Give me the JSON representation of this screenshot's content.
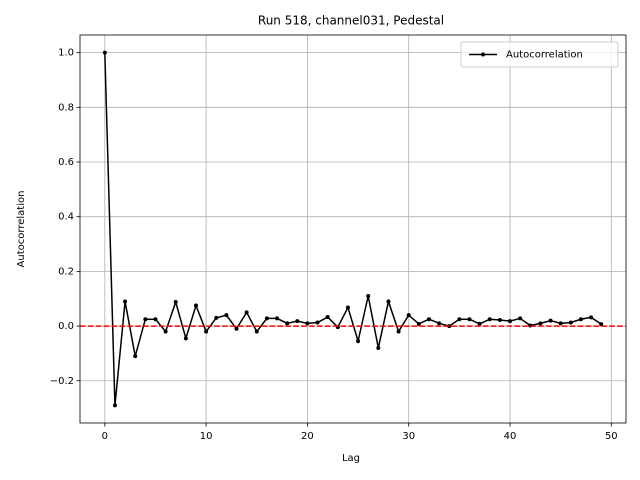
{
  "chart_data": {
    "type": "line",
    "title": "Run 518, channel031, Pedestal",
    "x_label": "Lag",
    "y_label": "Autocorrelation",
    "x": [
      0,
      1,
      2,
      3,
      4,
      5,
      6,
      7,
      8,
      9,
      10,
      11,
      12,
      13,
      14,
      15,
      16,
      17,
      18,
      19,
      20,
      21,
      22,
      23,
      24,
      25,
      26,
      27,
      28,
      29,
      30,
      31,
      32,
      33,
      34,
      35,
      36,
      37,
      38,
      39,
      40,
      41,
      42,
      43,
      44,
      45,
      46,
      47,
      48,
      49
    ],
    "series": [
      {
        "name": "Autocorrelation",
        "color": "#000000",
        "values": [
          1.0,
          -0.29,
          0.09,
          -0.11,
          0.025,
          0.025,
          -0.02,
          0.088,
          -0.045,
          0.075,
          -0.02,
          0.03,
          0.04,
          -0.01,
          0.05,
          -0.02,
          0.028,
          0.028,
          0.01,
          0.018,
          0.01,
          0.013,
          0.033,
          -0.004,
          0.068,
          -0.055,
          0.11,
          -0.08,
          0.09,
          -0.02,
          0.04,
          0.008,
          0.025,
          0.01,
          0.0,
          0.025,
          0.025,
          0.008,
          0.025,
          0.022,
          0.018,
          0.028,
          0.002,
          0.01,
          0.02,
          0.01,
          0.013,
          0.025,
          0.032,
          0.007
        ]
      }
    ],
    "hline": {
      "value": 0,
      "color": "#ff0000"
    },
    "xlim": [
      -2.45,
      51.45
    ],
    "xticks": [
      0,
      10,
      20,
      30,
      40,
      50
    ],
    "ylim": [
      -0.3545,
      1.0645
    ],
    "yticks": [
      {
        "value": -0.2,
        "label": "−0.2"
      },
      {
        "value": 0,
        "label": "0.0"
      },
      {
        "value": 0.2,
        "label": "0.2"
      },
      {
        "value": 0.4,
        "label": "0.4"
      },
      {
        "value": 0.6,
        "label": "0.6"
      },
      {
        "value": 0.8,
        "label": "0.8"
      },
      {
        "value": 1.0,
        "label": "1.0"
      }
    ],
    "grid": true,
    "legend": "upper-right"
  }
}
